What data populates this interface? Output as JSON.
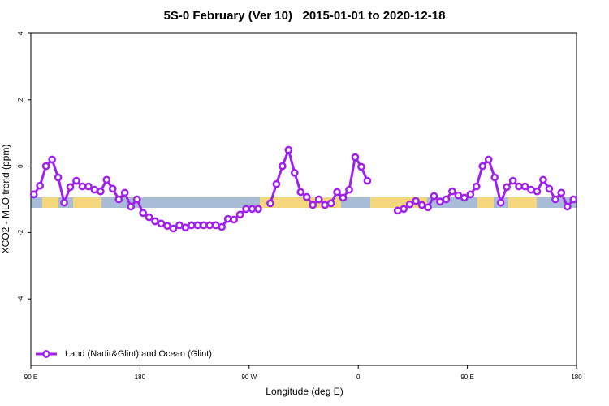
{
  "chart_data": {
    "type": "line",
    "title": "5S-0 February (Ver 10)   2015-01-01 to 2020-12-18",
    "x_label": "Longitude (deg E)",
    "y_label": "XCO2 - MLO trend (ppm)",
    "xlim": [
      90,
      540
    ],
    "xticks": [
      {
        "value": 90,
        "label": "90 E"
      },
      180,
      {
        "value": 270,
        "label": "90 W"
      },
      {
        "value": 360,
        "label": "0"
      },
      {
        "value": 450,
        "label": "90 E"
      },
      {
        "value": 540,
        "label": "180"
      }
    ],
    "ylim": [
      -6,
      4
    ],
    "yticks": [
      -4,
      -2,
      0,
      2,
      4
    ],
    "legend": "bottom-left",
    "x": [
      92.5,
      97.5,
      102.5,
      107.5,
      112.5,
      117.5,
      122.5,
      127.5,
      132.5,
      137.5,
      142.5,
      147.5,
      152.5,
      157.5,
      162.5,
      167.5,
      172.5,
      177.5,
      182.5,
      187.5,
      192.5,
      197.5,
      202.5,
      207.5,
      212.5,
      217.5,
      222.5,
      227.5,
      232.5,
      237.5,
      242.5,
      247.5,
      252.5,
      257.5,
      262.5,
      267.5,
      272.5,
      277.5,
      282.5,
      287.5,
      292.5,
      297.5,
      302.5,
      307.5,
      312.5,
      317.5,
      322.5,
      327.5,
      332.5,
      337.5,
      342.5,
      347.5,
      352.5,
      357.5,
      362.5,
      367.5,
      372.5,
      377.5,
      382.5,
      387.5,
      392.5,
      397.5,
      402.5,
      407.5,
      412.5,
      417.5,
      422.5,
      427.5,
      432.5,
      437.5,
      442.5,
      447.5,
      452.5,
      457.5,
      462.5,
      467.5,
      472.5,
      477.5,
      482.5,
      487.5,
      492.5,
      497.5,
      502.5,
      507.5,
      512.5,
      517.5,
      522.5,
      527.5,
      532.5,
      537.5
    ],
    "series": [
      {
        "name": "Land (Nadir&Glint) and Ocean (Glint)",
        "color": "#a020f0",
        "values": [
          -0.85,
          -0.59,
          0.0,
          0.2,
          -0.34,
          -1.1,
          -0.63,
          -0.44,
          -0.61,
          -0.61,
          -0.71,
          -0.76,
          -0.41,
          -0.68,
          -1.0,
          -0.8,
          -1.22,
          -1.0,
          -1.41,
          -1.54,
          -1.66,
          -1.73,
          -1.8,
          -1.88,
          -1.78,
          -1.85,
          -1.78,
          -1.78,
          -1.78,
          -1.78,
          -1.78,
          -1.83,
          -1.59,
          -1.61,
          -1.46,
          -1.29,
          -1.29,
          -1.29,
          null,
          -1.12,
          -0.54,
          0.0,
          0.49,
          -0.2,
          -0.78,
          -0.93,
          -1.17,
          -1.0,
          -1.17,
          -1.12,
          -0.78,
          -0.95,
          -0.71,
          0.27,
          -0.02,
          -0.44,
          null,
          null,
          null,
          null,
          -1.34,
          -1.29,
          -1.15,
          -1.05,
          -1.17,
          -1.24,
          -0.9,
          -1.07,
          -1.0,
          -0.76,
          -0.88,
          -0.95,
          -0.85,
          -0.61,
          0.0,
          0.2,
          -0.34,
          -1.1,
          -0.63,
          -0.44,
          -0.61,
          -0.61,
          -0.71,
          -0.76,
          -0.41,
          -0.68,
          -1.0,
          -0.8,
          -1.22,
          -1.0
        ]
      }
    ]
  }
}
